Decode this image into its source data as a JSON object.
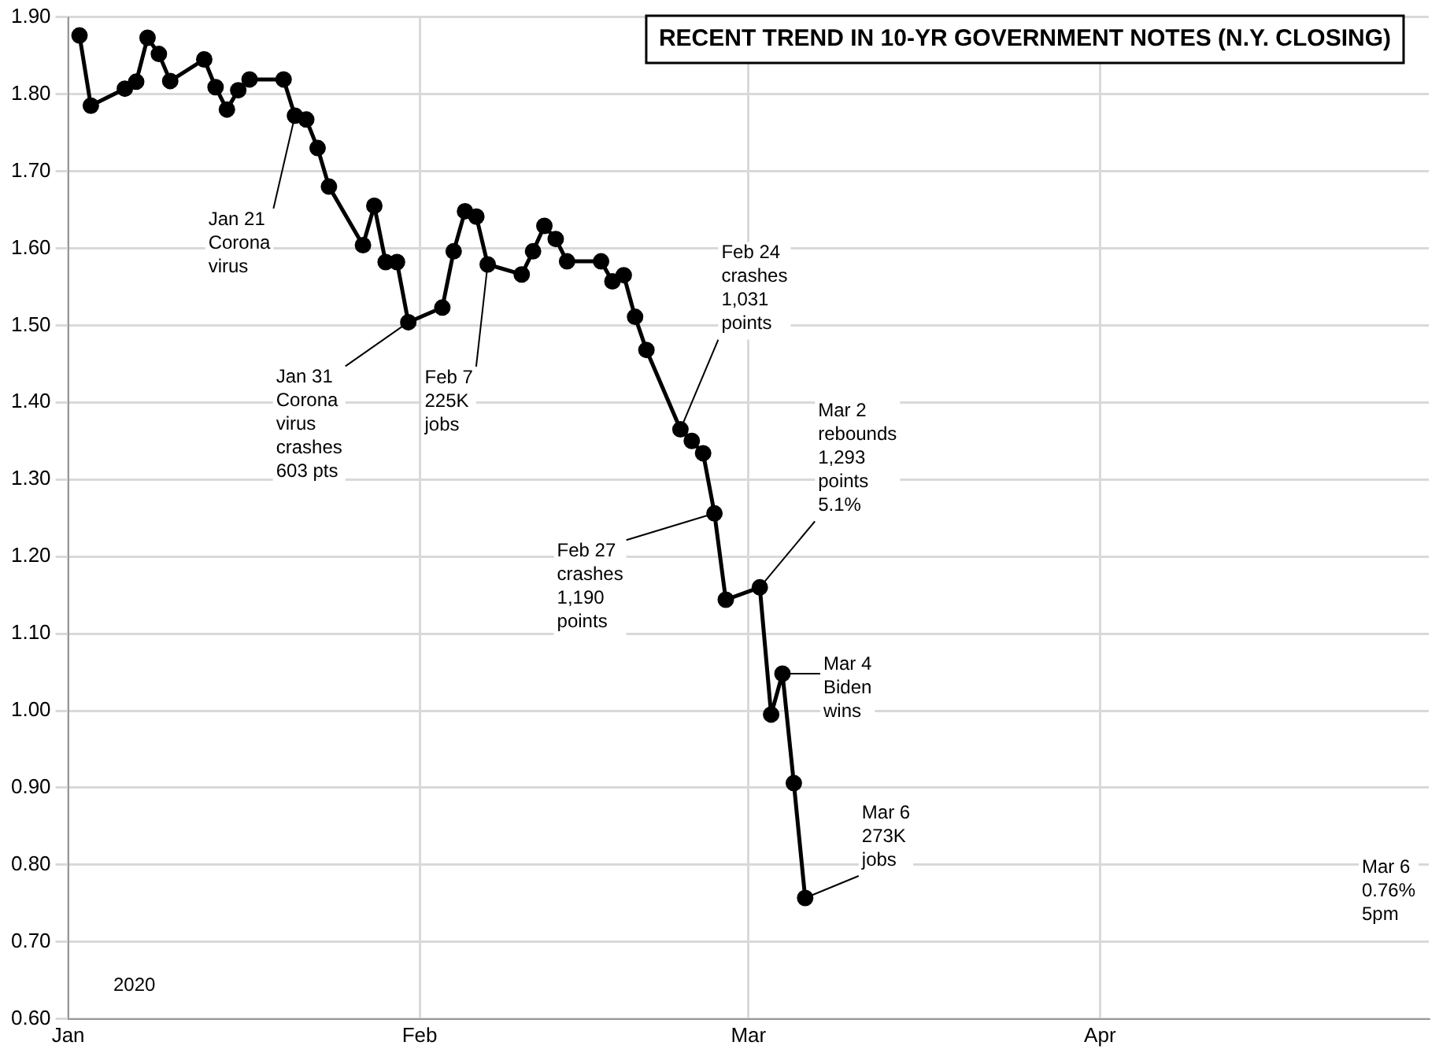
{
  "chart_data": {
    "type": "line",
    "title": "RECENT TREND IN 10-YR GOVERNMENT NOTES (N.Y. CLOSING)",
    "x": [
      "2020-01-02",
      "2020-01-03",
      "2020-01-06",
      "2020-01-07",
      "2020-01-08",
      "2020-01-09",
      "2020-01-10",
      "2020-01-13",
      "2020-01-14",
      "2020-01-15",
      "2020-01-16",
      "2020-01-17",
      "2020-01-20",
      "2020-01-21",
      "2020-01-22",
      "2020-01-23",
      "2020-01-24",
      "2020-01-27",
      "2020-01-28",
      "2020-01-29",
      "2020-01-30",
      "2020-01-31",
      "2020-02-03",
      "2020-02-04",
      "2020-02-05",
      "2020-02-06",
      "2020-02-07",
      "2020-02-10",
      "2020-02-11",
      "2020-02-12",
      "2020-02-13",
      "2020-02-14",
      "2020-02-17",
      "2020-02-18",
      "2020-02-19",
      "2020-02-20",
      "2020-02-21",
      "2020-02-24",
      "2020-02-25",
      "2020-02-26",
      "2020-02-27",
      "2020-02-28",
      "2020-03-02",
      "2020-03-03",
      "2020-03-04",
      "2020-03-05",
      "2020-03-06"
    ],
    "series": [
      {
        "color": "#000000",
        "values": [
          1.876,
          1.785,
          1.807,
          1.816,
          1.873,
          1.852,
          1.817,
          1.845,
          1.809,
          1.78,
          1.805,
          1.819,
          1.819,
          1.772,
          1.767,
          1.73,
          1.68,
          1.604,
          1.655,
          1.582,
          1.582,
          1.504,
          1.523,
          1.596,
          1.648,
          1.641,
          1.579,
          1.566,
          1.596,
          1.629,
          1.612,
          1.583,
          1.583,
          1.557,
          1.565,
          1.511,
          1.468,
          1.365,
          1.35,
          1.334,
          1.256,
          1.144,
          1.16,
          0.995,
          1.048,
          0.906,
          0.757
        ]
      }
    ],
    "xlim": [
      "2020-01-01",
      "2020-04-30"
    ],
    "xticks": [
      {
        "value": "2020-01-01",
        "label": "Jan"
      },
      {
        "value": "2020-02-01",
        "label": "Feb"
      },
      {
        "value": "2020-03-01",
        "label": "Mar"
      },
      {
        "value": "2020-04-01",
        "label": "Apr"
      }
    ],
    "ylim": [
      0.6,
      1.9
    ],
    "yticks": [
      {
        "value": 0.6,
        "label": "0.60"
      },
      {
        "value": 0.7,
        "label": "0.70"
      },
      {
        "value": 0.8,
        "label": "0.80"
      },
      {
        "value": 0.9,
        "label": "0.90"
      },
      {
        "value": 1.0,
        "label": "1.00"
      },
      {
        "value": 1.1,
        "label": "1.10"
      },
      {
        "value": 1.2,
        "label": "1.20"
      },
      {
        "value": 1.3,
        "label": "1.30"
      },
      {
        "value": 1.4,
        "label": "1.40"
      },
      {
        "value": 1.5,
        "label": "1.50"
      },
      {
        "value": 1.6,
        "label": "1.60"
      },
      {
        "value": 1.7,
        "label": "1.70"
      },
      {
        "value": 1.8,
        "label": "1.80"
      },
      {
        "value": 1.9,
        "label": "1.90"
      }
    ],
    "grid": true,
    "legend": false,
    "marker": "circle",
    "line_style": "solid",
    "annotations": [
      {
        "text": "Jan 21\nCorona\nvirus",
        "x": "2020-01-21",
        "y": 1.772
      },
      {
        "text": "Jan 31\nCorona\nvirus\ncrashes\n603 pts",
        "x": "2020-01-31",
        "y": 1.504
      },
      {
        "text": "Feb 7\n225K\njobs",
        "x": "2020-02-07",
        "y": 1.579
      },
      {
        "text": "Feb 24\ncrashes\n1,031\npoints",
        "x": "2020-02-24",
        "y": 1.365
      },
      {
        "text": "Feb 27\ncrashes\n1,190\npoints",
        "x": "2020-02-27",
        "y": 1.256
      },
      {
        "text": "Mar 2\nrebounds\n1,293\npoints\n5.1%",
        "x": "2020-03-02",
        "y": 1.16
      },
      {
        "text": "Mar 4\nBiden\nwins",
        "x": "2020-03-04",
        "y": 1.048
      },
      {
        "text": "Mar 6\n273K\njobs",
        "x": "2020-03-06",
        "y": 0.757
      },
      "Mar 6\n0.76%\n5pm",
      "2020"
    ]
  }
}
